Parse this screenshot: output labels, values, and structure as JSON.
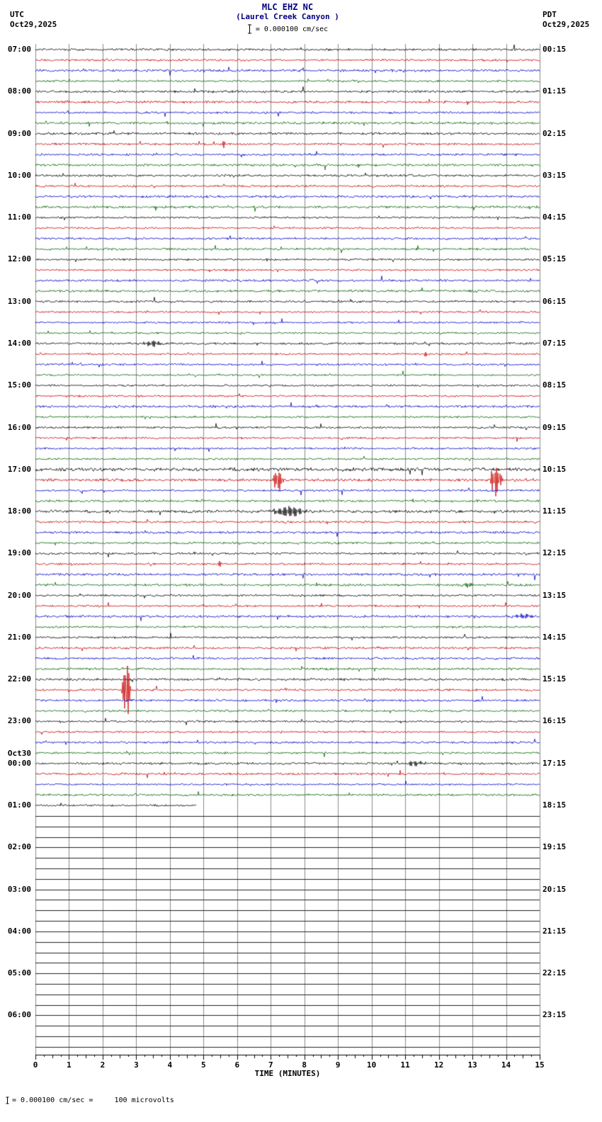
{
  "header": {
    "title": "MLC EHZ NC",
    "subtitle": "(Laurel Creek Canyon )",
    "scale_label": "= 0.000100 cm/sec",
    "left_tz": "UTC",
    "left_date": "Oct29,2025",
    "right_tz": "PDT",
    "right_date": "Oct29,2025"
  },
  "x_axis": {
    "label": "TIME (MINUTES)",
    "ticks": [
      "0",
      "1",
      "2",
      "3",
      "4",
      "5",
      "6",
      "7",
      "8",
      "9",
      "10",
      "11",
      "12",
      "13",
      "14",
      "15"
    ]
  },
  "footer": {
    "note": "= 0.000100 cm/sec =     100 microvolts"
  },
  "chart_data": {
    "type": "line",
    "title": "MLC EHZ NC",
    "subtitle": "(Laurel Creek Canyon )",
    "xlabel": "TIME (MINUTES)",
    "x_range_minutes": [
      0,
      15
    ],
    "traces_per_hour": 4,
    "trace_colors": [
      "#000000",
      "#c80000",
      "#0000c8",
      "#006400"
    ],
    "grid_color": "#8a8a8a",
    "flat_row_color": "#222222",
    "default_amp": 1.8,
    "amp_overrides": {
      "0": 2.2,
      "1": 2.0,
      "4": 1.9,
      "40": 2.6,
      "41": 2.2,
      "44": 2.5,
      "45": 2.0,
      "68": 2.1
    },
    "partial_end_minute": 4.8,
    "hours": [
      {
        "utc": "07:00",
        "pdt": "00:15",
        "active": true
      },
      {
        "utc": "08:00",
        "pdt": "01:15",
        "active": true
      },
      {
        "utc": "09:00",
        "pdt": "02:15",
        "active": true
      },
      {
        "utc": "10:00",
        "pdt": "03:15",
        "active": true
      },
      {
        "utc": "11:00",
        "pdt": "04:15",
        "active": true
      },
      {
        "utc": "12:00",
        "pdt": "05:15",
        "active": true
      },
      {
        "utc": "13:00",
        "pdt": "06:15",
        "active": true
      },
      {
        "utc": "14:00",
        "pdt": "07:15",
        "active": true
      },
      {
        "utc": "15:00",
        "pdt": "08:15",
        "active": true
      },
      {
        "utc": "16:00",
        "pdt": "09:15",
        "active": true
      },
      {
        "utc": "17:00",
        "pdt": "10:15",
        "active": true
      },
      {
        "utc": "18:00",
        "pdt": "11:15",
        "active": true
      },
      {
        "utc": "19:00",
        "pdt": "12:15",
        "active": true
      },
      {
        "utc": "20:00",
        "pdt": "13:15",
        "active": true
      },
      {
        "utc": "21:00",
        "pdt": "14:15",
        "active": true
      },
      {
        "utc": "22:00",
        "pdt": "15:15",
        "active": true
      },
      {
        "utc": "23:00",
        "pdt": "16:15",
        "active": true
      },
      {
        "utc": "00:00",
        "pdt": "17:15",
        "active": true,
        "date_above": "Oct30"
      },
      {
        "utc": "01:00",
        "pdt": "18:15",
        "active": "partial"
      },
      {
        "utc": "02:00",
        "pdt": "19:15",
        "active": false
      },
      {
        "utc": "03:00",
        "pdt": "20:15",
        "active": false
      },
      {
        "utc": "04:00",
        "pdt": "21:15",
        "active": false
      },
      {
        "utc": "05:00",
        "pdt": "22:15",
        "active": false
      },
      {
        "utc": "06:00",
        "pdt": "23:15",
        "active": false
      }
    ],
    "events": [
      {
        "hour": 2,
        "trace": 1,
        "x": 5.6,
        "w": 0.06,
        "amp": 6
      },
      {
        "hour": 7,
        "trace": 0,
        "x": 3.45,
        "w": 0.25,
        "amp": 5
      },
      {
        "hour": 7,
        "trace": 1,
        "x": 11.6,
        "w": 0.05,
        "amp": 4
      },
      {
        "hour": 10,
        "trace": 1,
        "x": 7.2,
        "w": 0.12,
        "amp": 22
      },
      {
        "hour": 10,
        "trace": 1,
        "x": 13.7,
        "w": 0.15,
        "amp": 26
      },
      {
        "hour": 11,
        "trace": 0,
        "x": 7.55,
        "w": 0.45,
        "amp": 9
      },
      {
        "hour": 12,
        "trace": 1,
        "x": 5.5,
        "w": 0.05,
        "amp": 5
      },
      {
        "hour": 12,
        "trace": 3,
        "x": 12.9,
        "w": 0.12,
        "amp": 5
      },
      {
        "hour": 13,
        "trace": 2,
        "x": 14.5,
        "w": 0.25,
        "amp": 4
      },
      {
        "hour": 15,
        "trace": 1,
        "x": 2.7,
        "w": 0.1,
        "amp": 55
      },
      {
        "hour": 17,
        "trace": 0,
        "x": 11.3,
        "w": 0.3,
        "amp": 4
      }
    ]
  }
}
